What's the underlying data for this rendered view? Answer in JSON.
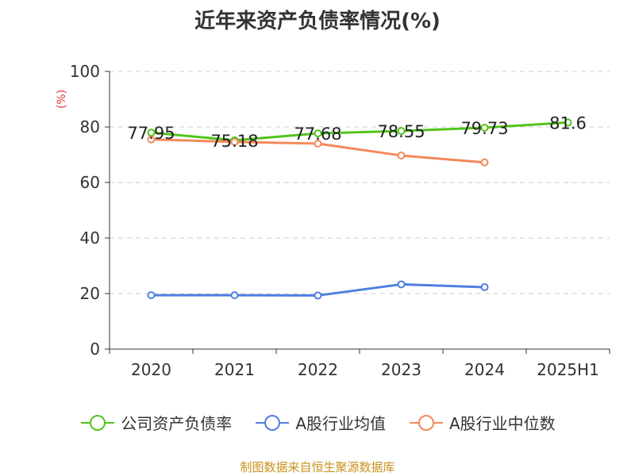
{
  "chart_data": {
    "type": "line",
    "title": "近年来资产负债率情况(%)",
    "ylabel": "(%)",
    "categories": [
      "2020",
      "2021",
      "2022",
      "2023",
      "2024",
      "2025H1"
    ],
    "ylim": [
      0,
      100
    ],
    "yticks": [
      0,
      20,
      40,
      60,
      80,
      100
    ],
    "grid": true,
    "legend_position": "bottom",
    "series": [
      {
        "name": "公司资产负债率",
        "color": "#52c41a",
        "values": [
          77.95,
          75.18,
          77.68,
          78.55,
          79.73,
          81.6
        ],
        "labels": [
          "77.95",
          "75.18",
          "77.68",
          "78.55",
          "79.73",
          "81.6"
        ]
      },
      {
        "name": "A股行业均值",
        "color": "#4e7fe0",
        "values": [
          19.4,
          19.4,
          19.3,
          23.3,
          22.3,
          null
        ]
      },
      {
        "name": "A股行业中位数",
        "color": "#f5895a",
        "values": [
          75.5,
          74.6,
          74.0,
          69.7,
          67.2,
          null
        ]
      }
    ]
  },
  "source": "制图数据来自恒生聚源数据库"
}
